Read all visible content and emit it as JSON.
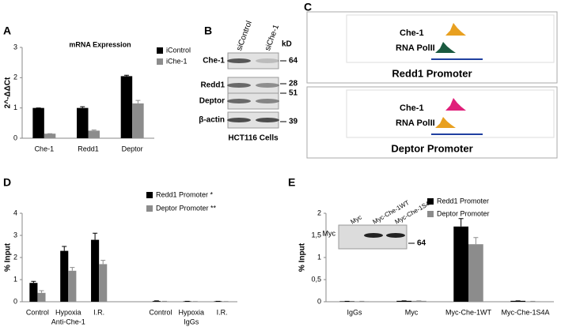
{
  "chart_data": [
    {
      "type": "bar",
      "title": "mRNA Expression",
      "y_label": "2^-ΔΔCt",
      "categories": [
        "Che-1",
        "Redd1",
        "Deptor"
      ],
      "series": [
        {
          "name": "iControl",
          "color": "#000000",
          "values": [
            1,
            1,
            2.05
          ],
          "errors": [
            0,
            0.04,
            0.03
          ]
        },
        {
          "name": "iChe-1",
          "color": "#8c8c8c",
          "values": [
            0.15,
            0.25,
            1.15
          ],
          "errors": [
            0,
            0.02,
            0.1
          ]
        }
      ],
      "ylim": [
        0,
        3
      ],
      "yticks": [
        0,
        1,
        2,
        3
      ],
      "legend": "upper right"
    },
    {
      "type": "bar",
      "y_label": "% Input",
      "categories": [
        "Control",
        "Hypoxia",
        "I.R.",
        null,
        "Control",
        "Hypoxia",
        "I.R."
      ],
      "groups": [
        "Anti-Che-1",
        "IgGs"
      ],
      "series": [
        {
          "name": "Redd1 Promoter *",
          "color": "#000000",
          "values": [
            0.85,
            2.3,
            2.8,
            null,
            0.03,
            0.02,
            0.02
          ],
          "errors": [
            0.07,
            0.2,
            0.3,
            null,
            0.01,
            0,
            0
          ]
        },
        {
          "name": "Deptor Promoter **",
          "color": "#8c8c8c",
          "values": [
            0.4,
            1.4,
            1.7,
            null,
            0.02,
            0.01,
            0.01
          ],
          "errors": [
            0.1,
            0.15,
            0.17,
            null,
            0,
            0,
            0
          ]
        }
      ],
      "ylim": [
        0,
        4
      ],
      "yticks": [
        0,
        1,
        2,
        3,
        4
      ],
      "legend": "upper right"
    },
    {
      "type": "bar",
      "y_label": "% Input",
      "categories": [
        "IgGs",
        "Myc",
        "Myc-Che-1WT",
        "Myc-Che-1S4A"
      ],
      "series": [
        {
          "name": "Redd1 Promoter",
          "color": "#000000",
          "values": [
            0.01,
            0.02,
            1.7,
            0.02
          ],
          "errors": [
            0,
            0,
            0.18,
            0
          ]
        },
        {
          "name": "Deptor Promoter",
          "color": "#8c8c8c",
          "values": [
            0.01,
            0.02,
            1.3,
            0.01
          ],
          "errors": [
            0,
            0,
            0.15,
            0
          ]
        }
      ],
      "ylim": [
        0,
        2
      ],
      "yticks": [
        0,
        {
          "value": 0.5,
          "label": "0,5"
        },
        1,
        {
          "value": 1.5,
          "label": "1,5"
        },
        2
      ],
      "legend": "upper right"
    }
  ],
  "panel_letters": [
    "A",
    "B",
    "C",
    "D",
    "E"
  ],
  "blot_b": {
    "lanes": [
      "siControl",
      "siChe-1"
    ],
    "unit": "kD",
    "rows": [
      {
        "label": "Che-1",
        "kd": "64"
      },
      {
        "label": "Redd1",
        "kd": "28"
      },
      {
        "label": "Deptor",
        "kd": "51"
      },
      {
        "label": "β-actin",
        "kd": "39"
      }
    ],
    "caption": "HCT116 Cells"
  },
  "tracks_c": [
    {
      "title": "Redd1 Promoter",
      "labels": [
        "Che-1",
        "RNA PolII"
      ]
    },
    {
      "title": "Deptor Promoter",
      "labels": [
        "Che-1",
        "RNA PolII"
      ]
    }
  ],
  "inset_e": {
    "row_label": "Myc",
    "kd": "64",
    "lanes": [
      "Myc",
      "Myc-Che-1WT",
      "Myc-Che-1S4A"
    ]
  }
}
